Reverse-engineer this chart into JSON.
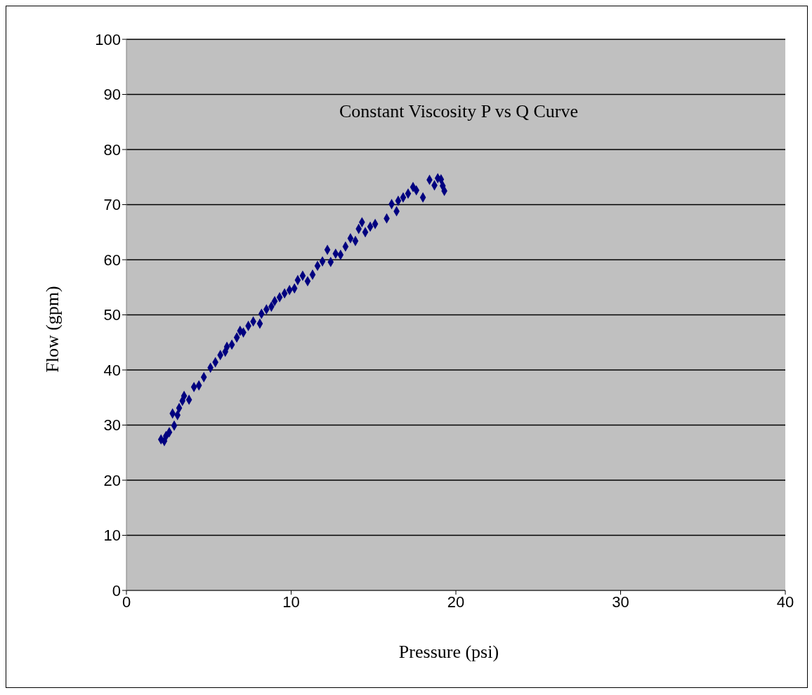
{
  "chart_data": {
    "type": "scatter",
    "title": "Constant Viscosity P vs Q Curve",
    "xlabel": "Pressure (psi)",
    "ylabel": "Flow (gpm)",
    "xlim": [
      0,
      40
    ],
    "xticks": [
      0,
      10,
      20,
      30,
      40
    ],
    "ylim": [
      0,
      100
    ],
    "yticks": [
      0,
      10,
      20,
      30,
      40,
      50,
      60,
      70,
      80,
      90,
      100
    ],
    "grid": "y",
    "marker": "diamond",
    "x": [
      2.3,
      2.1,
      2.4,
      2.6,
      2.9,
      2.8,
      3.1,
      3.2,
      3.4,
      3.5,
      3.8,
      4.1,
      4.4,
      4.7,
      5.1,
      5.4,
      5.7,
      6.0,
      6.1,
      6.4,
      6.7,
      6.9,
      7.1,
      7.4,
      7.7,
      8.1,
      8.2,
      8.5,
      8.8,
      9.0,
      9.3,
      9.6,
      9.9,
      10.2,
      10.4,
      10.7,
      11.0,
      11.3,
      11.6,
      11.9,
      12.2,
      12.4,
      12.7,
      13.0,
      13.3,
      13.6,
      13.9,
      14.1,
      14.3,
      14.5,
      14.8,
      15.1,
      15.8,
      16.1,
      16.4,
      16.5,
      16.8,
      17.1,
      17.4,
      17.6,
      18.0,
      18.4,
      18.7,
      18.9,
      19.1,
      19.3,
      19.2
    ],
    "series": [
      {
        "color": "#000080",
        "values": [
          27.1,
          27.4,
          28.0,
          28.7,
          29.9,
          32.1,
          31.8,
          33.1,
          34.4,
          35.3,
          34.6,
          36.9,
          37.2,
          38.7,
          40.4,
          41.4,
          42.7,
          43.3,
          44.2,
          44.6,
          45.9,
          47.1,
          46.8,
          48.0,
          48.8,
          48.4,
          50.2,
          51.0,
          51.5,
          52.5,
          53.2,
          53.9,
          54.5,
          54.8,
          56.3,
          57.1,
          56.1,
          57.3,
          58.9,
          59.7,
          61.8,
          59.6,
          61.1,
          60.9,
          62.4,
          63.9,
          63.4,
          65.6,
          66.8,
          65.0,
          66.0,
          66.5,
          67.5,
          70.1,
          68.8,
          70.7,
          71.3,
          72.0,
          73.2,
          72.6,
          71.3,
          74.5,
          73.5,
          74.8,
          74.6,
          72.5,
          73.4
        ]
      }
    ]
  }
}
